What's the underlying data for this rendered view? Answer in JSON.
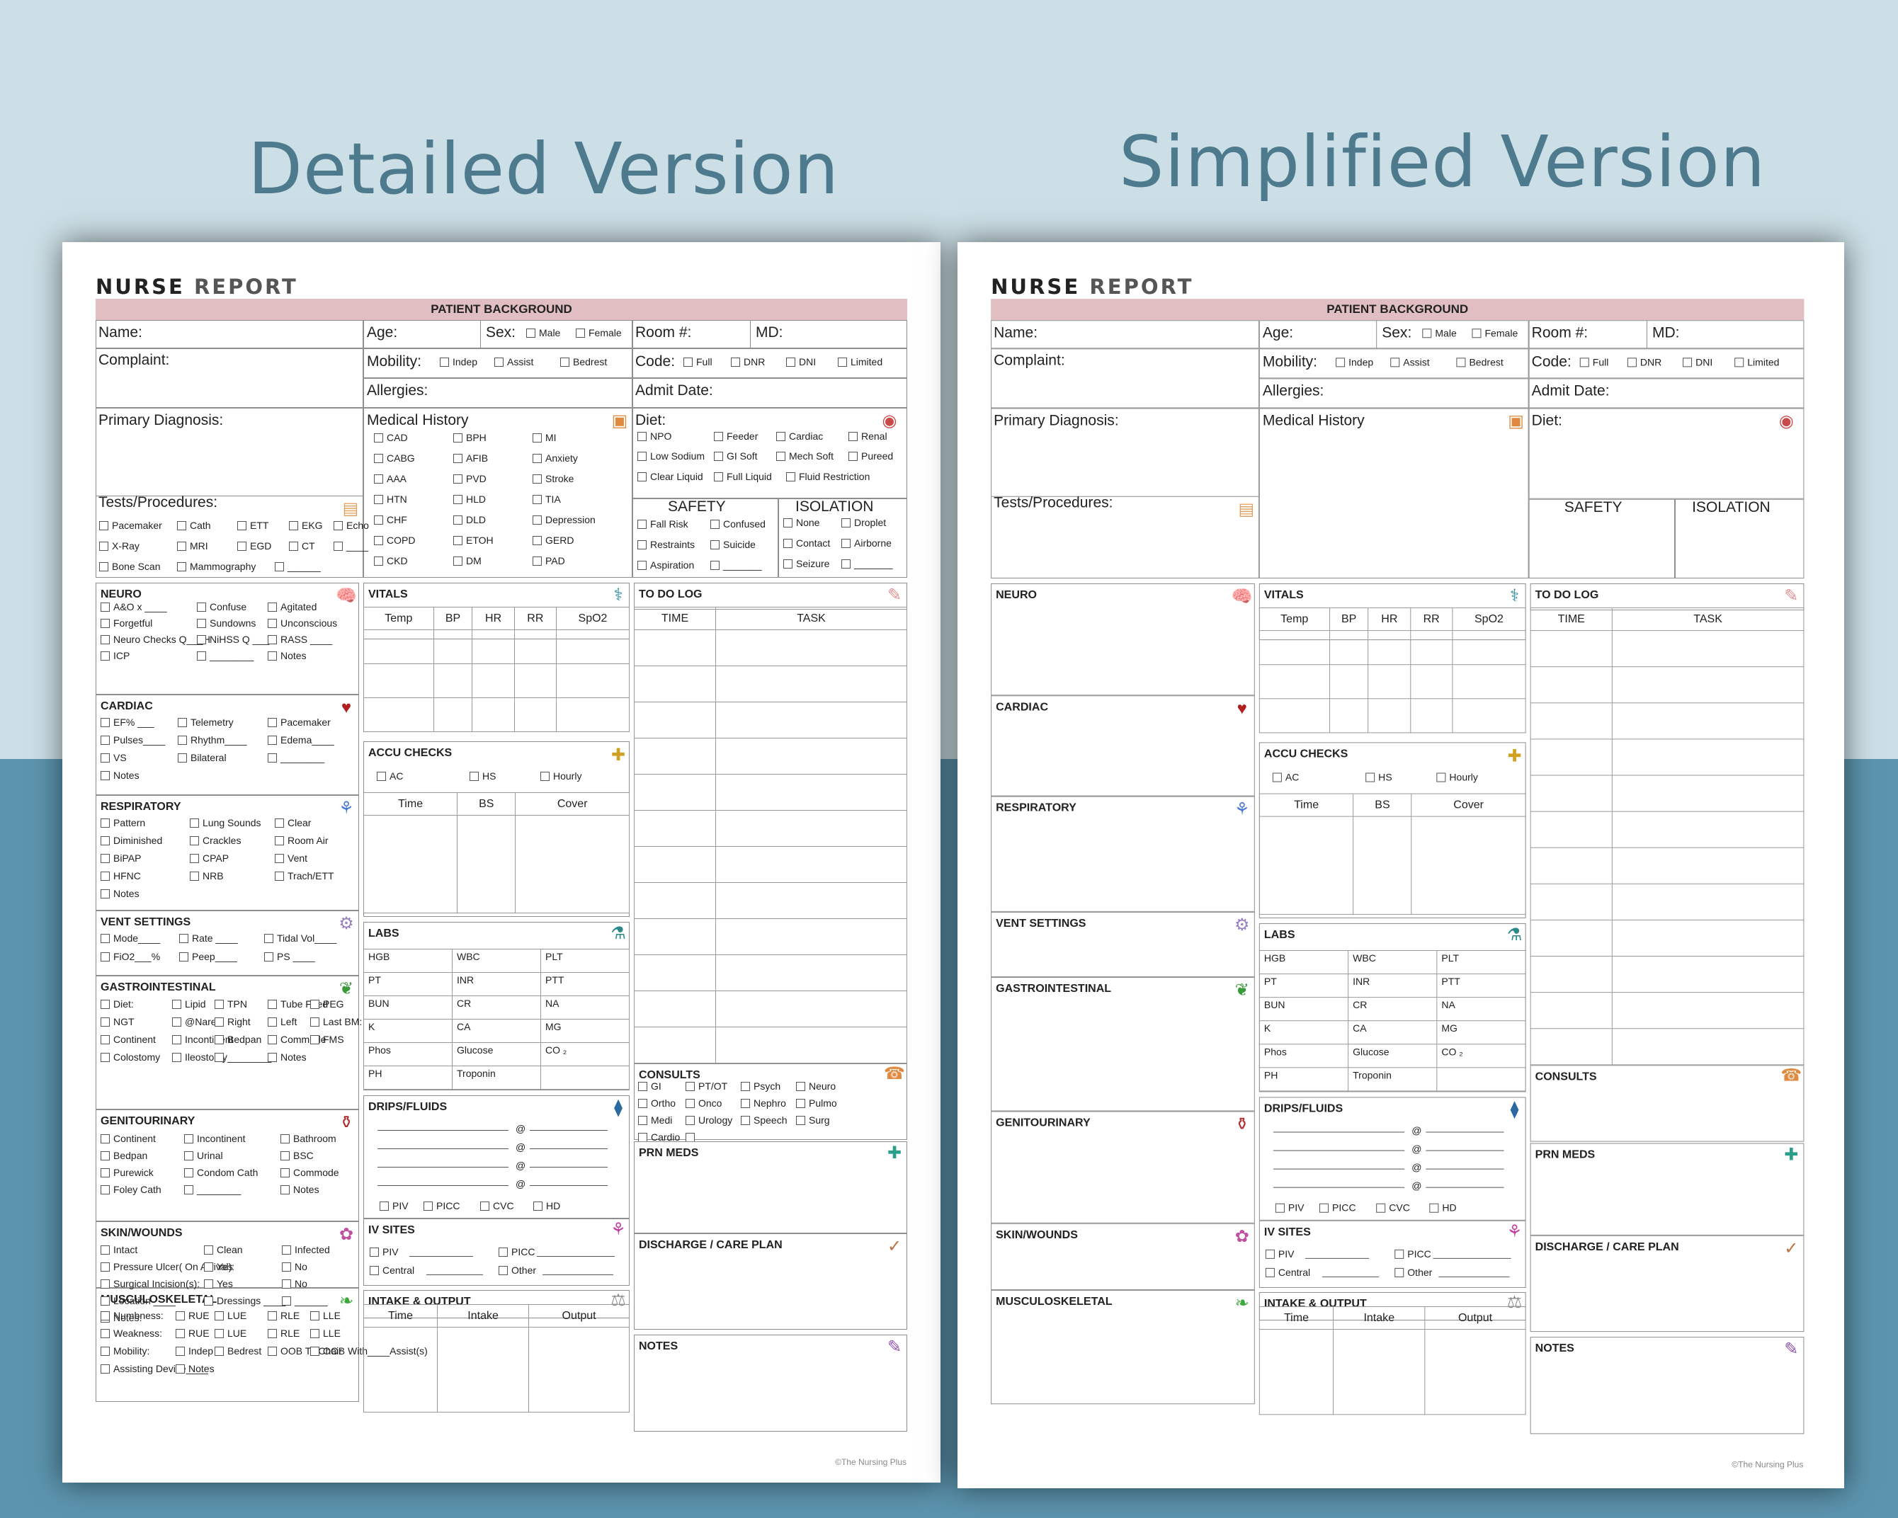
{
  "headings": {
    "left": "Detailed Version",
    "right": "Simplified Version"
  },
  "sheet": {
    "title_bold": "NURSE",
    "title_rest": "REPORT",
    "band": "PATIENT BACKGROUND",
    "name": "Name:",
    "age": "Age:",
    "sex": "Sex:",
    "male": "Male",
    "female": "Female",
    "room": "Room #:",
    "md": "MD:",
    "complaint": "Complaint:",
    "mobility": "Mobility:",
    "indep": "Indep",
    "assist": "Assist",
    "bedrest": "Bedrest",
    "code": "Code:",
    "full": "Full",
    "dnr": "DNR",
    "dni": "DNI",
    "limited": "Limited",
    "allergies": "Allergies:",
    "admit": "Admit Date:",
    "primary": "Primary Diagnosis:",
    "medhist": "Medical History",
    "diet": "Diet:",
    "tests": "Tests/Procedures:",
    "safety": "SAFETY",
    "isolation": "ISOLATION",
    "neuro": "NEURO",
    "cardiac": "CARDIAC",
    "resp": "RESPIRATORY",
    "vent": "VENT SETTINGS",
    "gi": "GASTROINTESTINAL",
    "gu": "GENITOURINARY",
    "skin": "SKIN/WOUNDS",
    "msk": "MUSCULOSKELETAL",
    "vitals": "VITALS",
    "vitals_cols": [
      "Temp",
      "BP",
      "HR",
      "RR",
      "SpO2"
    ],
    "accu": "ACCU CHECKS",
    "ac": "AC",
    "hs": "HS",
    "hourly": "Hourly",
    "accu_cols": [
      "Time",
      "BS",
      "Cover"
    ],
    "labs": "LABS",
    "lab_cells": [
      "HGB",
      "WBC",
      "PLT",
      "PT",
      "INR",
      "PTT",
      "BUN",
      "CR",
      "NA",
      "K",
      "CA",
      "MG",
      "Phos",
      "Glucose",
      "CO ₂",
      "PH",
      "Troponin",
      ""
    ],
    "drips": "DRIPS/FLUIDS",
    "at": "@",
    "piv": "PIV",
    "picc": "PICC",
    "cvc": "CVC",
    "hd": "HD",
    "ivsites": "IV SITES",
    "central": "Central",
    "other": "Other",
    "io": "INTAKE & OUTPUT",
    "io_cols": [
      "Time",
      "Intake",
      "Output"
    ],
    "todo": "TO DO LOG",
    "todo_cols": [
      "TIME",
      "TASK"
    ],
    "consults": "CONSULTS",
    "prn": "PRN MEDS",
    "discharge": "DISCHARGE / CARE PLAN",
    "notes": "NOTES",
    "copyright": "©The Nursing Plus"
  },
  "detail": {
    "medhist_items": [
      "CAD",
      "BPH",
      "MI",
      "CABG",
      "AFIB",
      "Anxiety",
      "AAA",
      "PVD",
      "Stroke",
      "HTN",
      "HLD",
      "TIA",
      "CHF",
      "DLD",
      "Depression",
      "COPD",
      "ETOH",
      "GERD",
      "CKD",
      "DM",
      "PAD"
    ],
    "diet_items": [
      "NPO",
      "Feeder",
      "Cardiac",
      "Renal",
      "Low Sodium",
      "GI Soft",
      "Mech Soft",
      "Pureed",
      "Clear Liquid",
      "Full Liquid",
      "Fluid Restriction"
    ],
    "tests_items": [
      "Pacemaker",
      "Cath",
      "ETT",
      "EKG",
      "Echo",
      "X-Ray",
      "MRI",
      "EGD",
      "CT",
      "____",
      "Bone Scan",
      "Mammography",
      "______"
    ],
    "safety_items": [
      "Fall Risk",
      "Confused",
      "Restraints",
      "Suicide",
      "Aspiration",
      "_______"
    ],
    "isolation_items": [
      "None",
      "Droplet",
      "Contact",
      "Airborne",
      "Seizure",
      "_______"
    ],
    "neuro_items": [
      "A&O x  ____",
      "Confuse",
      "Agitated",
      "Forgetful",
      "Sundowns",
      "Unconscious",
      "Neuro Checks Q___H",
      "NiHSS Q ___H",
      "RASS ____",
      "ICP",
      "________",
      "Notes"
    ],
    "cardiac_items": [
      "EF% ___",
      "Telemetry",
      "Pacemaker",
      "Pulses____",
      "Rhythm____",
      "Edema____",
      "VS",
      "Bilateral",
      "________",
      "Notes"
    ],
    "resp_items": [
      "Pattern",
      "Lung Sounds",
      "Clear",
      "Diminished",
      "Crackles",
      "Room Air",
      "BiPAP",
      "CPAP",
      "Vent",
      "HFNC",
      "NRB",
      "Trach/ETT",
      "Notes"
    ],
    "vent_items": [
      "Mode____",
      "Rate ____",
      "Tidal Vol____",
      "FiO2___%",
      "Peep____",
      "PS ____"
    ],
    "gi_items": [
      "Diet:",
      "Lipid",
      "TPN",
      "Tube Feed",
      "PEG",
      "NGT",
      "@Nare:",
      "Right",
      "Left",
      "Last BM:",
      "Continent",
      "Incontinent",
      "Bedpan",
      "Commode",
      "FMS",
      "Colostomy",
      "Ileostomy",
      "________",
      "Notes"
    ],
    "gu_items": [
      "Continent",
      "Incontinent",
      "Bathroom",
      "Bedpan",
      "Urinal",
      "BSC",
      "Purewick",
      "Condom Cath",
      "Commode",
      "Foley Cath",
      "________",
      "Notes"
    ],
    "skin_items": [
      "Intact",
      "Clean",
      "Infected",
      "Pressure Ulcer( On Arrival):",
      "Yes",
      "No",
      "Surgical Incision(s):",
      "Yes",
      "No",
      "Location ____",
      "Dressings ____",
      "______",
      "Notes:"
    ],
    "msk_items": [
      "Numbness:",
      "RUE",
      "LUE",
      "RLE",
      "LLE",
      "Weakness:",
      "RUE",
      "LUE",
      "RLE",
      "LLE",
      "Mobility:",
      "Indep",
      "Bedrest",
      "OOB To Chair",
      "OOB With____Assist(s)",
      "Assisting Device____",
      "Notes"
    ],
    "consult_items": [
      "GI",
      "PT/OT",
      "Psych",
      "Neuro",
      "Ortho",
      "Onco",
      "Nephro",
      "Pulmo",
      "Medi",
      "Urology",
      "Speech",
      "Surg",
      "Cardio",
      "_____"
    ]
  },
  "colors": {
    "band": "#e1bec1",
    "heading": "#4d7a8d",
    "bg_top": "#ccdfe6",
    "bg_bottom": "#5c94ae"
  }
}
